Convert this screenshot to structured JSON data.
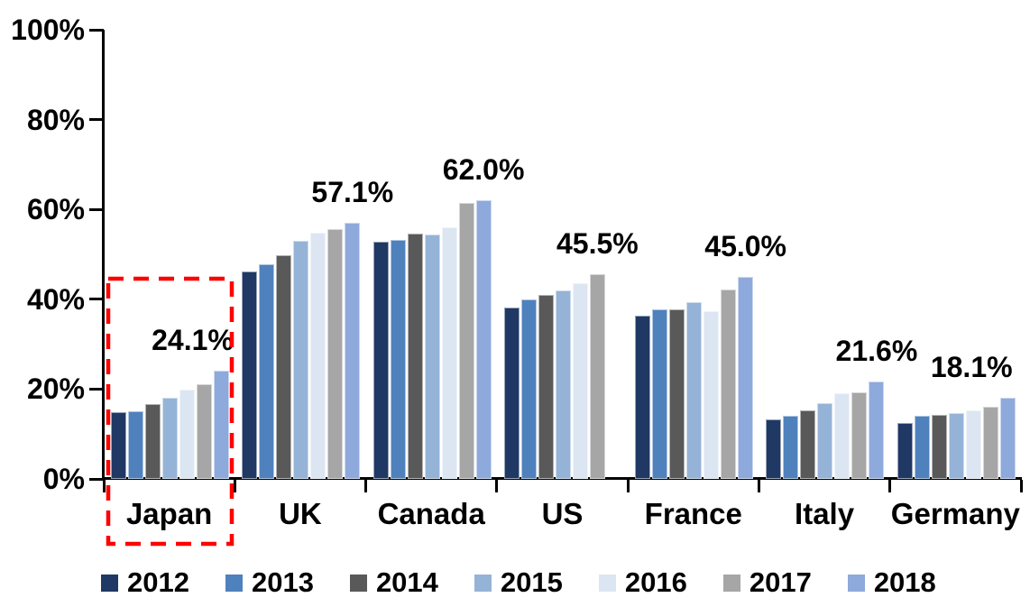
{
  "chart_data": {
    "type": "bar",
    "title": "",
    "xlabel": "",
    "ylabel": "",
    "categories": [
      "Japan",
      "UK",
      "Canada",
      "US",
      "France",
      "Italy",
      "Germany"
    ],
    "series": [
      {
        "name": "2012",
        "color": "#1F3864",
        "values": [
          14.8,
          46.2,
          52.8,
          38.2,
          36.4,
          13.3,
          12.5
        ]
      },
      {
        "name": "2013",
        "color": "#4F81BD",
        "values": [
          15.0,
          47.7,
          53.2,
          40.0,
          37.7,
          14.0,
          14.0
        ]
      },
      {
        "name": "2014",
        "color": "#595959",
        "values": [
          16.7,
          49.8,
          54.6,
          40.9,
          37.8,
          15.3,
          14.3
        ]
      },
      {
        "name": "2015",
        "color": "#95B3D7",
        "values": [
          18.0,
          53.0,
          54.4,
          42.0,
          39.3,
          16.8,
          14.7
        ]
      },
      {
        "name": "2016",
        "color": "#DCE6F2",
        "values": [
          19.9,
          54.8,
          56.0,
          43.5,
          37.3,
          19.0,
          15.3
        ]
      },
      {
        "name": "2017",
        "color": "#A6A6A6",
        "values": [
          21.0,
          55.6,
          61.4,
          45.5,
          42.2,
          19.2,
          16.0
        ]
      },
      {
        "name": "2018",
        "color": "#8EA9DB",
        "values": [
          24.1,
          57.1,
          62.0,
          null,
          45.0,
          21.6,
          18.1
        ]
      }
    ],
    "group_max_labels": [
      "24.1%",
      "57.1%",
      "62.0%",
      "45.5%",
      "45.0%",
      "21.6%",
      "18.1%"
    ],
    "yticks": [
      {
        "label": "0%",
        "value": 0
      },
      {
        "label": "20%",
        "value": 20
      },
      {
        "label": "40%",
        "value": 40
      },
      {
        "label": "60%",
        "value": 60
      },
      {
        "label": "80%",
        "value": 80
      },
      {
        "label": "100%",
        "value": 100
      }
    ],
    "ylim": [
      0,
      100
    ],
    "grid": false,
    "legend_position": "bottom",
    "annotation": {
      "type": "dashed-rectangle",
      "color": "#FF0000",
      "around_category": "Japan"
    }
  }
}
